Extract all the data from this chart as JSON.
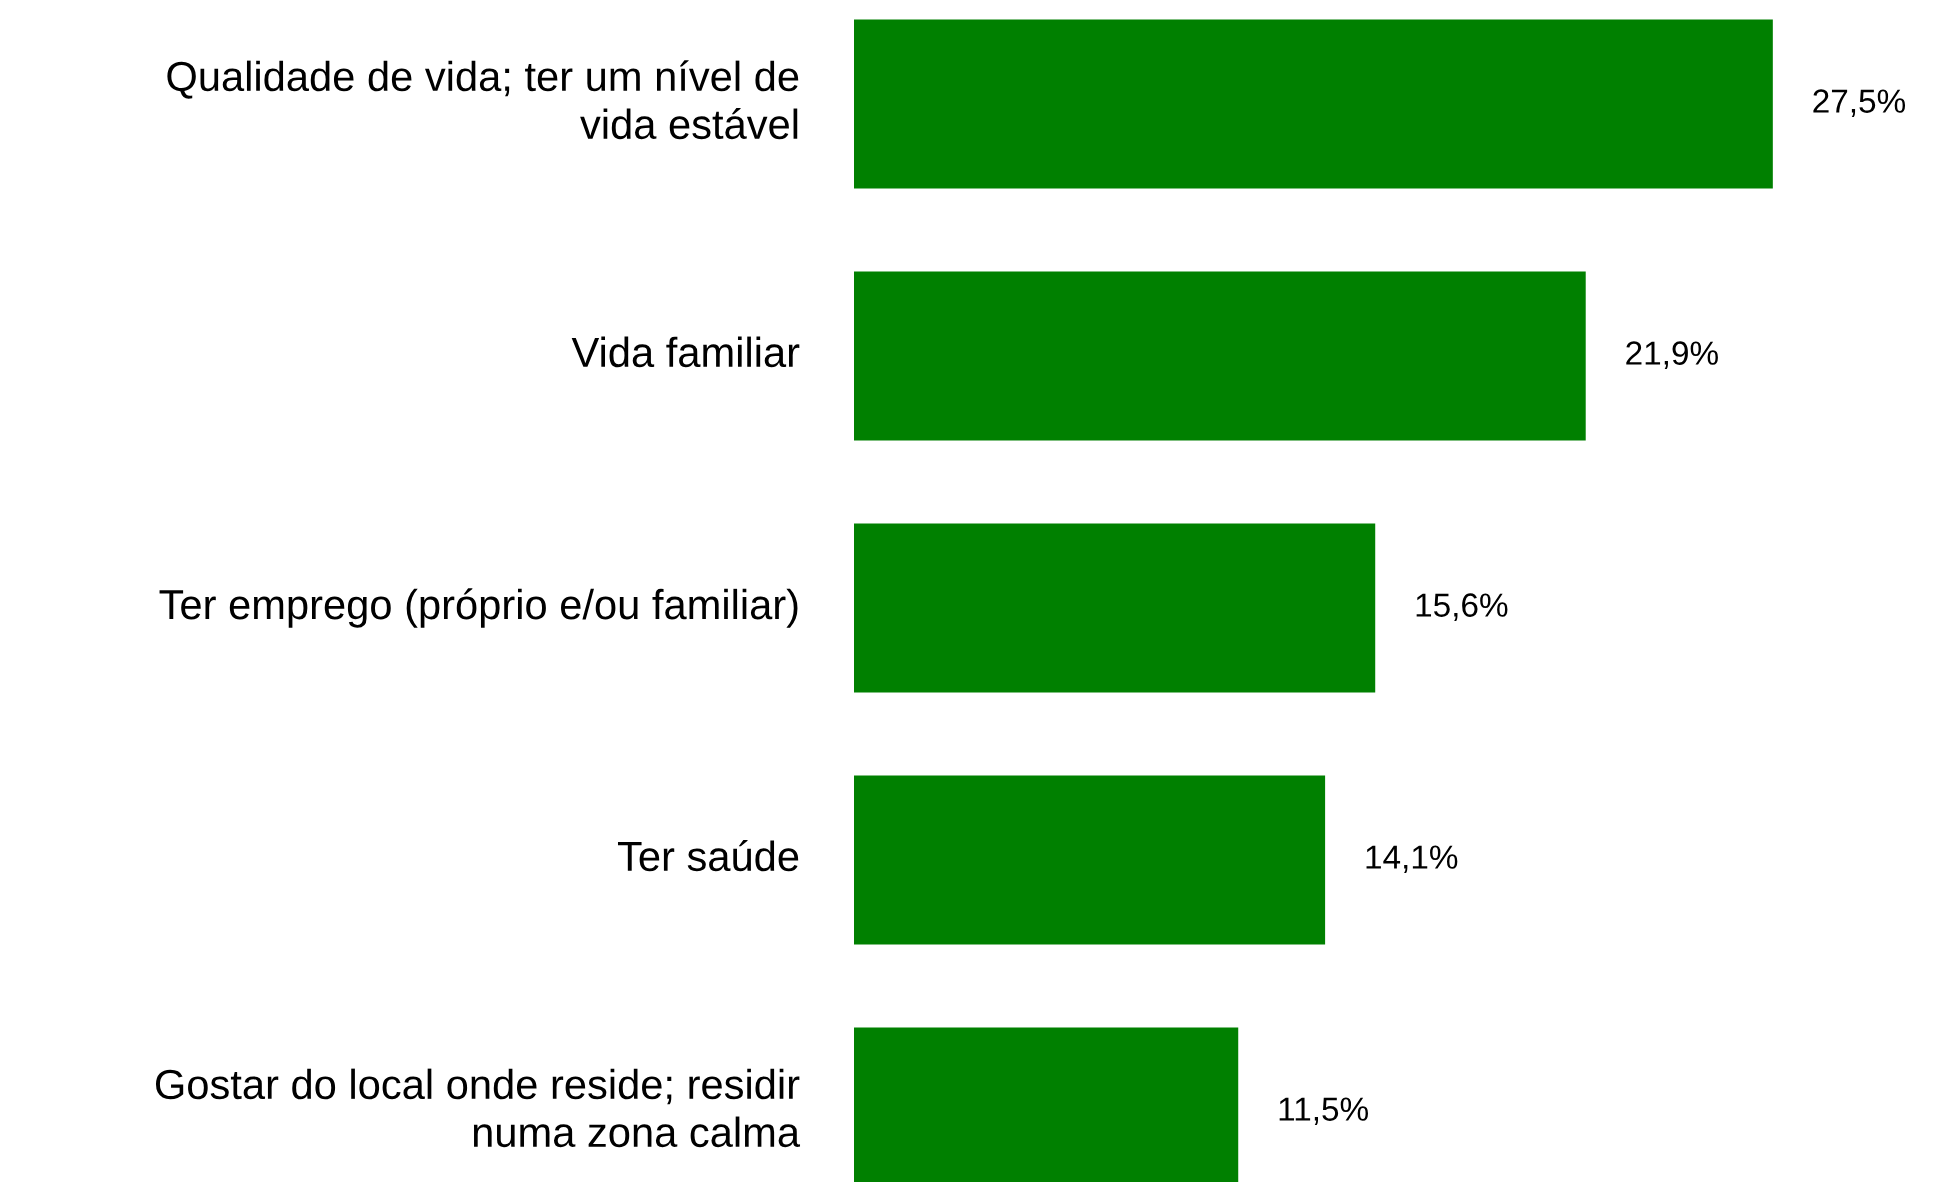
{
  "chart_data": {
    "type": "bar",
    "orientation": "horizontal",
    "categories": [
      "Qualidade de vida; ter um nível de\nvida estável",
      "Vida familiar",
      "Ter emprego (próprio e/ou familiar)",
      "Ter saúde",
      "Gostar do local onde reside; residir\nnuma zona calma"
    ],
    "values": [
      27.5,
      21.9,
      15.6,
      14.1,
      11.5
    ],
    "value_labels": [
      "27,5%",
      "21,9%",
      "15,6%",
      "14,1%",
      "11,5%"
    ],
    "color": "#008000"
  }
}
